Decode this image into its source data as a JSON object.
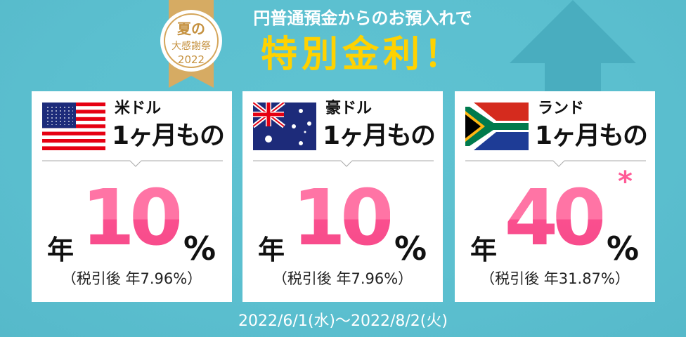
{
  "medal": {
    "line1": "夏の",
    "line2": "大感謝祭",
    "line3": "2022"
  },
  "subtitle": "円普通預金からのお預入れで",
  "headline": "特別金利！",
  "cards": [
    {
      "flag": "us-flag",
      "currency": "米ドル",
      "term": "1ヶ月もの",
      "prefix": "年",
      "rate": "10",
      "unit": "%",
      "after_tax": "（税引後 年7.96%）",
      "note_mark": ""
    },
    {
      "flag": "au-flag",
      "currency": "豪ドル",
      "term": "1ヶ月もの",
      "prefix": "年",
      "rate": "10",
      "unit": "%",
      "after_tax": "（税引後 年7.96%）",
      "note_mark": ""
    },
    {
      "flag": "za-flag",
      "currency": "ランド",
      "term": "1ヶ月もの",
      "prefix": "年",
      "rate": "40",
      "unit": "%",
      "after_tax": "（税引後 年31.87%）",
      "note_mark": "*"
    }
  ],
  "period": "2022/6/1(水)～2022/8/2(火)",
  "colors": {
    "background": "#5bbfcf",
    "headline": "#ffd200",
    "rate_pink": "#fa4f8e",
    "medal_gold": "#d4a55a"
  }
}
